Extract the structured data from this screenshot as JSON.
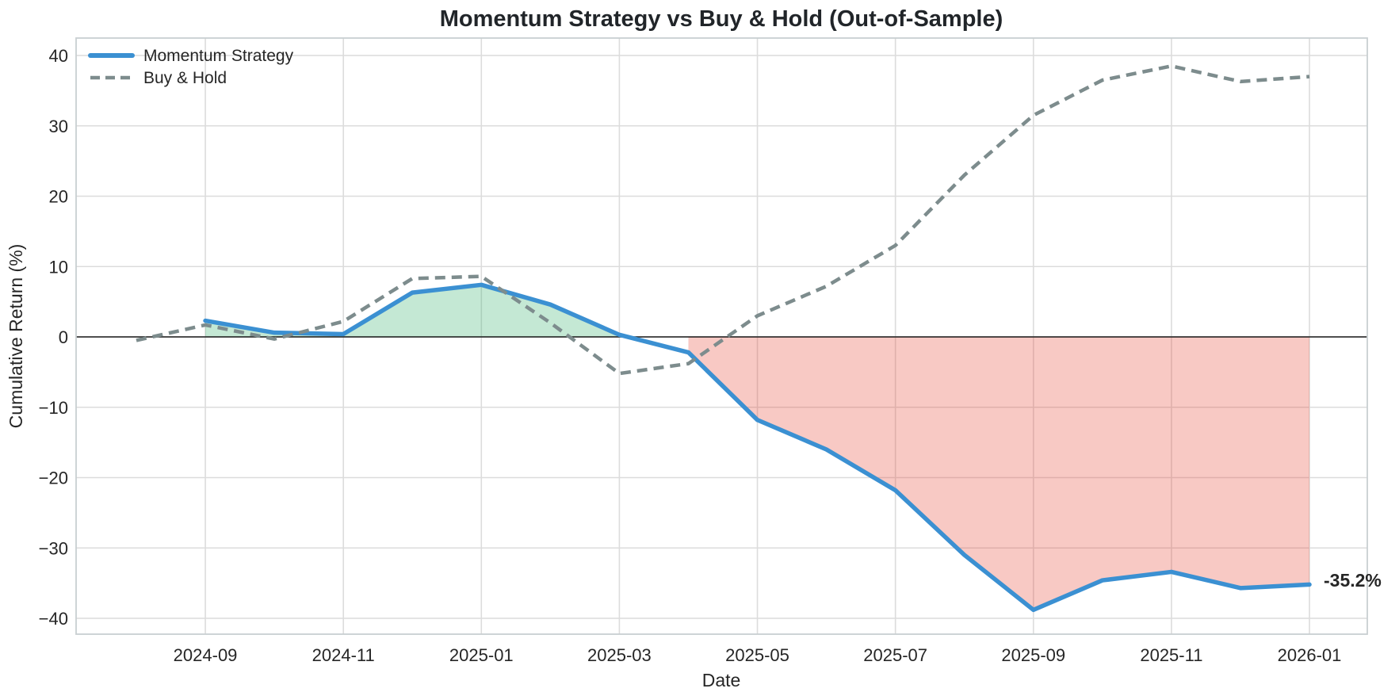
{
  "chart_data": {
    "type": "line",
    "title": "Momentum Strategy vs Buy & Hold (Out-of-Sample)",
    "xlabel": "Date",
    "ylabel": "Cumulative Return (%)",
    "grid": true,
    "legend_position": "upper left",
    "ylim": [
      -42.5,
      42.5
    ],
    "categories": [
      "2024-08",
      "2024-09",
      "2024-10",
      "2024-11",
      "2024-12",
      "2025-01",
      "2025-02",
      "2025-03",
      "2025-04",
      "2025-05",
      "2025-06",
      "2025-07",
      "2025-08",
      "2025-09",
      "2025-10",
      "2025-11",
      "2025-12",
      "2026-01"
    ],
    "x_tick_labels": [
      "2024-09",
      "2024-11",
      "2025-01",
      "2025-03",
      "2025-05",
      "2025-07",
      "2025-09",
      "2025-11",
      "2026-01"
    ],
    "y_ticks": [
      40,
      30,
      20,
      10,
      0,
      -10,
      -20,
      -30,
      -40
    ],
    "y_tick_labels": [
      "40",
      "30",
      "20",
      "10",
      "0",
      "−10",
      "−20",
      "−30",
      "−40"
    ],
    "series": [
      {
        "name": "Momentum Strategy",
        "style": "solid",
        "color": "#3b90d2",
        "values": [
          null,
          2.3,
          0.6,
          0.4,
          6.3,
          7.4,
          4.6,
          0.3,
          -2.2,
          -11.8,
          -16.0,
          -21.8,
          -31.0,
          -38.8,
          -34.6,
          -33.4,
          -35.7,
          -35.2
        ]
      },
      {
        "name": "Buy & Hold",
        "style": "dashed",
        "color": "#7d8c8d",
        "values": [
          -0.5,
          1.7,
          -0.3,
          2.2,
          8.3,
          8.6,
          2.0,
          -5.2,
          -3.8,
          3.0,
          7.2,
          13.0,
          23.0,
          31.5,
          36.5,
          38.5,
          36.3,
          37.0
        ]
      }
    ],
    "fills": {
      "positive_color": "rgba(60,179,113,0.30)",
      "negative_color": "rgba(231,76,60,0.30)"
    },
    "zero_line_color": "#1a1a1a",
    "grid_color": "#dcdcdc",
    "border_color": "#c9cfd1",
    "annotation": {
      "text": "-35.2%",
      "color": "#3b90d2"
    }
  }
}
